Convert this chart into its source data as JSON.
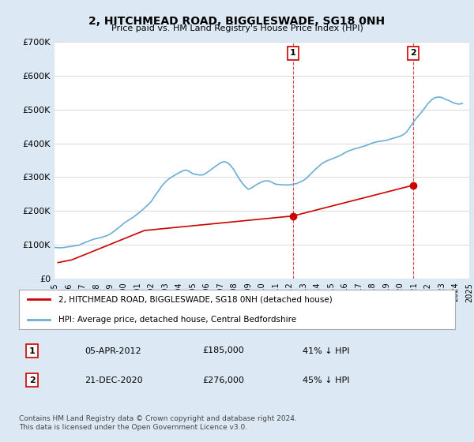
{
  "title": "2, HITCHMEAD ROAD, BIGGLESWADE, SG18 0NH",
  "subtitle": "Price paid vs. HM Land Registry's House Price Index (HPI)",
  "legend_line1": "2, HITCHMEAD ROAD, BIGGLESWADE, SG18 0NH (detached house)",
  "legend_line2": "HPI: Average price, detached house, Central Bedfordshire",
  "transaction1_date": "05-APR-2012",
  "transaction1_price": "£185,000",
  "transaction1_hpi": "41% ↓ HPI",
  "transaction2_date": "21-DEC-2020",
  "transaction2_price": "£276,000",
  "transaction2_hpi": "45% ↓ HPI",
  "footer": "Contains HM Land Registry data © Crown copyright and database right 2024.\nThis data is licensed under the Open Government Licence v3.0.",
  "hpi_color": "#6baed6",
  "price_color": "#cc0000",
  "marker_color": "#cc0000",
  "vline_color": "#cc0000",
  "background_color": "#dce9f5",
  "plot_bg_color": "#ffffff",
  "ylim": [
    0,
    700000
  ],
  "yticks": [
    0,
    100000,
    200000,
    300000,
    400000,
    500000,
    600000,
    700000
  ],
  "ytick_labels": [
    "£0",
    "£100K",
    "£200K",
    "£300K",
    "£400K",
    "£500K",
    "£600K",
    "£700K"
  ],
  "hpi_years": [
    1995.0,
    1995.25,
    1995.5,
    1995.75,
    1996.0,
    1996.25,
    1996.5,
    1996.75,
    1997.0,
    1997.25,
    1997.5,
    1997.75,
    1998.0,
    1998.25,
    1998.5,
    1998.75,
    1999.0,
    1999.25,
    1999.5,
    1999.75,
    2000.0,
    2000.25,
    2000.5,
    2000.75,
    2001.0,
    2001.25,
    2001.5,
    2001.75,
    2002.0,
    2002.25,
    2002.5,
    2002.75,
    2003.0,
    2003.25,
    2003.5,
    2003.75,
    2004.0,
    2004.25,
    2004.5,
    2004.75,
    2005.0,
    2005.25,
    2005.5,
    2005.75,
    2006.0,
    2006.25,
    2006.5,
    2006.75,
    2007.0,
    2007.25,
    2007.5,
    2007.75,
    2008.0,
    2008.25,
    2008.5,
    2008.75,
    2009.0,
    2009.25,
    2009.5,
    2009.75,
    2010.0,
    2010.25,
    2010.5,
    2010.75,
    2011.0,
    2011.25,
    2011.5,
    2011.75,
    2012.0,
    2012.25,
    2012.5,
    2012.75,
    2013.0,
    2013.25,
    2013.5,
    2013.75,
    2014.0,
    2014.25,
    2014.5,
    2014.75,
    2015.0,
    2015.25,
    2015.5,
    2015.75,
    2016.0,
    2016.25,
    2016.5,
    2016.75,
    2017.0,
    2017.25,
    2017.5,
    2017.75,
    2018.0,
    2018.25,
    2018.5,
    2018.75,
    2019.0,
    2019.25,
    2019.5,
    2019.75,
    2020.0,
    2020.25,
    2020.5,
    2020.75,
    2021.0,
    2021.25,
    2021.5,
    2021.75,
    2022.0,
    2022.25,
    2022.5,
    2022.75,
    2023.0,
    2023.25,
    2023.5,
    2023.75,
    2024.0,
    2024.25,
    2024.5
  ],
  "hpi_values": [
    92000,
    91000,
    91000,
    92000,
    94000,
    95000,
    97000,
    98000,
    103000,
    107000,
    111000,
    115000,
    118000,
    120000,
    123000,
    126000,
    131000,
    138000,
    146000,
    154000,
    163000,
    170000,
    176000,
    183000,
    191000,
    199000,
    208000,
    218000,
    228000,
    244000,
    258000,
    273000,
    285000,
    294000,
    301000,
    307000,
    313000,
    318000,
    321000,
    317000,
    310000,
    308000,
    306000,
    307000,
    313000,
    320000,
    328000,
    335000,
    342000,
    346000,
    343000,
    334000,
    320000,
    302000,
    287000,
    274000,
    264000,
    268000,
    275000,
    281000,
    286000,
    289000,
    289000,
    284000,
    279000,
    278000,
    277000,
    277000,
    277000,
    279000,
    281000,
    285000,
    290000,
    298000,
    308000,
    318000,
    328000,
    337000,
    344000,
    349000,
    353000,
    357000,
    361000,
    366000,
    372000,
    377000,
    381000,
    384000,
    387000,
    390000,
    393000,
    397000,
    401000,
    404000,
    406000,
    407000,
    409000,
    412000,
    415000,
    418000,
    421000,
    426000,
    435000,
    450000,
    465000,
    478000,
    490000,
    503000,
    517000,
    528000,
    535000,
    537000,
    536000,
    531000,
    527000,
    522000,
    518000,
    516000,
    518000
  ],
  "price_years": [
    1995.25,
    1996.25,
    2001.5,
    2012.25,
    2020.95
  ],
  "price_values": [
    47000,
    55000,
    142000,
    185000,
    276000
  ],
  "transaction1_year": 2012.25,
  "transaction1_value": 185000,
  "transaction2_year": 2020.95,
  "transaction2_value": 276000,
  "xmin": 1995.0,
  "xmax": 2025.0
}
